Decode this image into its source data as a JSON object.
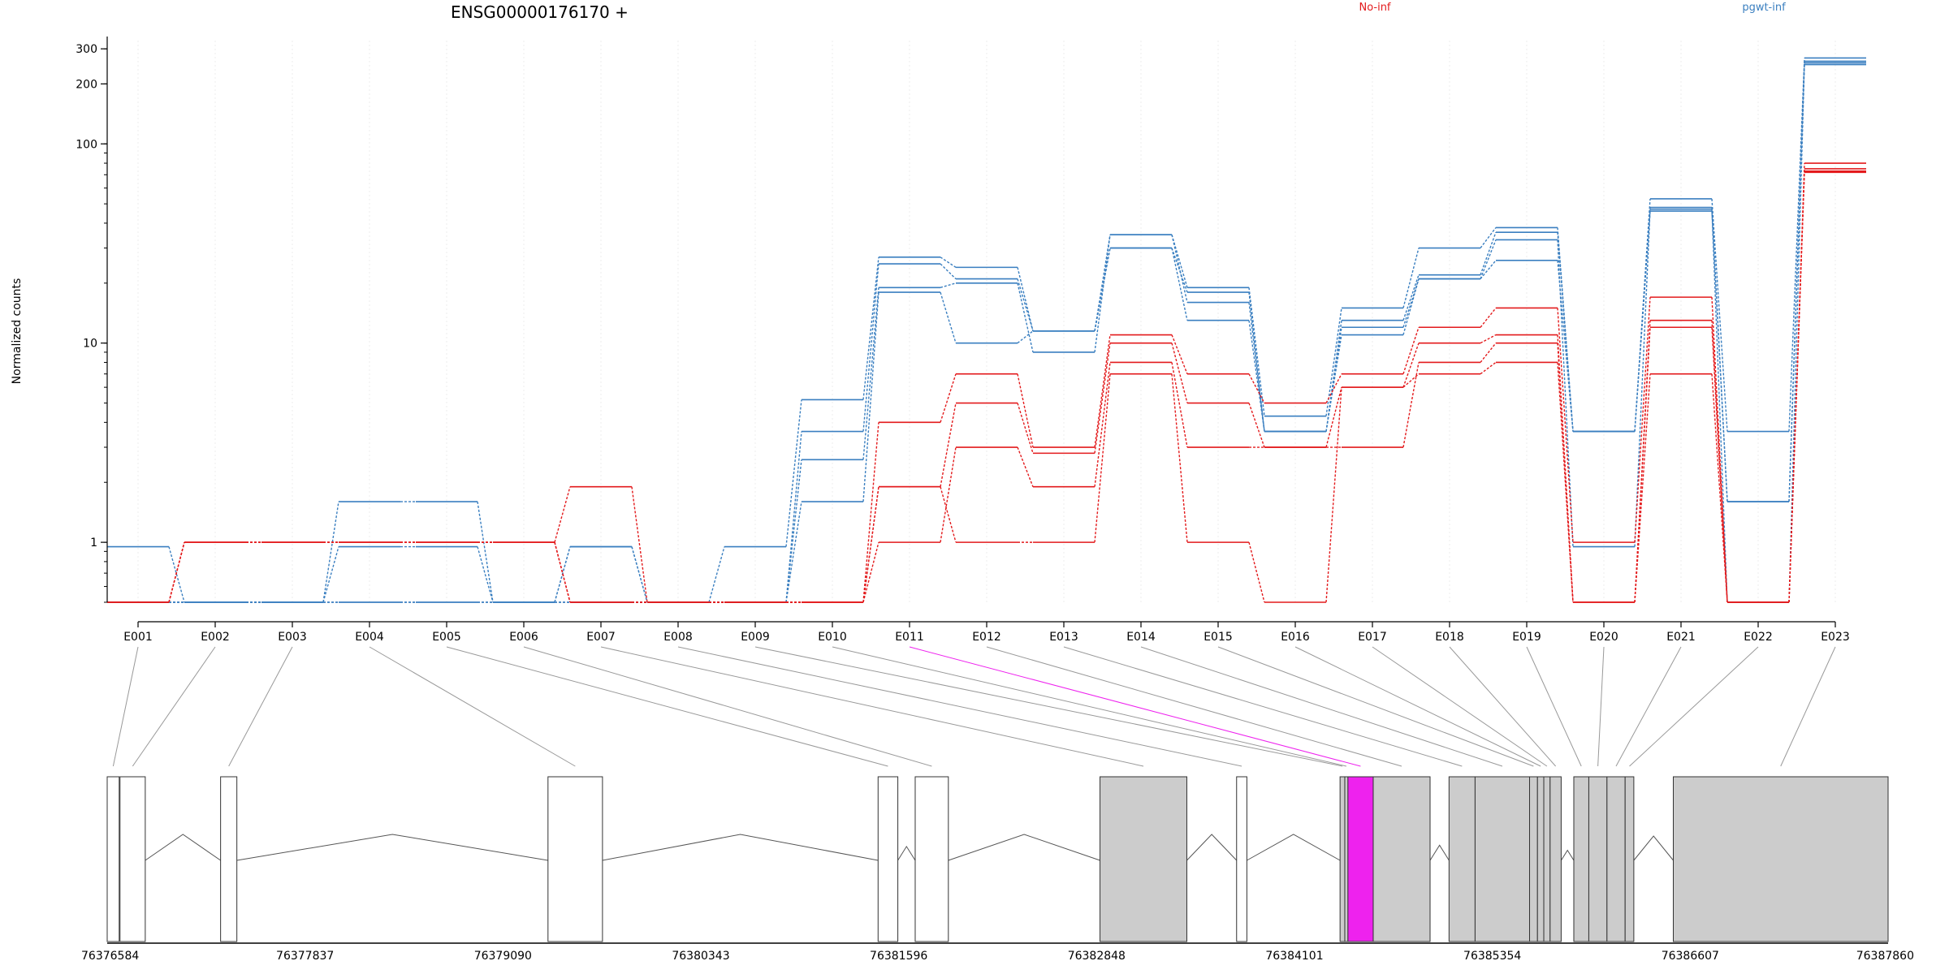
{
  "chart_data": {
    "type": "line",
    "title": "ENSG00000176170 +",
    "ylabel": "Normalized counts",
    "yscale": "log",
    "ylim": [
      0.5,
      330
    ],
    "yticks": [
      1,
      10,
      100,
      200,
      300
    ],
    "ytick_labels": [
      "1",
      "10",
      "100",
      "200",
      "300"
    ],
    "legend": [
      {
        "name": "No-inf",
        "color": "#e31a1c",
        "placement": "top"
      },
      {
        "name": "pgwt-inf",
        "color": "#3a7fc0",
        "placement": "top-right"
      }
    ],
    "categories": [
      "E001",
      "E002",
      "E003",
      "E004",
      "E005",
      "E006",
      "E007",
      "E008",
      "E009",
      "E010",
      "E011",
      "E012",
      "E013",
      "E014",
      "E015",
      "E016",
      "E017",
      "E018",
      "E019",
      "E020",
      "E021",
      "E022",
      "E023"
    ],
    "series": [
      {
        "group": "pgwt-inf",
        "color": "#3a7fc0",
        "values": [
          0.95,
          0.5,
          0.5,
          1.6,
          1.6,
          0.5,
          0.95,
          0.5,
          0.95,
          5.2,
          27,
          24,
          11.5,
          35,
          19,
          4.3,
          15,
          30,
          38,
          3.6,
          53,
          3.6,
          270
        ]
      },
      {
        "group": "pgwt-inf",
        "color": "#3a7fc0",
        "values": [
          0.5,
          0.5,
          0.5,
          0.95,
          0.95,
          0.5,
          0.5,
          0.5,
          0.5,
          3.6,
          25,
          21,
          11.5,
          30,
          18,
          3.6,
          13,
          22,
          36,
          3.6,
          48,
          1.6,
          260
        ]
      },
      {
        "group": "pgwt-inf",
        "color": "#3a7fc0",
        "values": [
          0.5,
          0.5,
          0.5,
          0.5,
          0.5,
          0.5,
          0.95,
          0.5,
          0.5,
          2.6,
          19,
          20,
          9,
          35,
          16,
          3.6,
          12,
          21,
          33,
          0.95,
          47,
          0.5,
          250
        ]
      },
      {
        "group": "pgwt-inf",
        "color": "#3a7fc0",
        "values": [
          0.5,
          0.5,
          0.5,
          0.5,
          0.5,
          0.5,
          0.5,
          0.5,
          0.5,
          1.6,
          18,
          10,
          11.5,
          30,
          13,
          3.6,
          11,
          21,
          26,
          3.6,
          46,
          1.6,
          255
        ]
      },
      {
        "group": "No-inf",
        "color": "#e31a1c",
        "values": [
          0.5,
          1.0,
          1.0,
          1.0,
          1.0,
          1.0,
          1.9,
          0.5,
          0.5,
          0.5,
          4.0,
          7.0,
          3.0,
          11,
          7,
          5,
          7,
          12,
          15,
          1.0,
          17,
          0.5,
          80
        ]
      },
      {
        "group": "No-inf",
        "color": "#e31a1c",
        "values": [
          0.5,
          1.0,
          1.0,
          1.0,
          1.0,
          1.0,
          0.5,
          0.5,
          0.5,
          0.5,
          1.9,
          5.0,
          2.8,
          10,
          5,
          3,
          6,
          10,
          11,
          0.5,
          13,
          0.5,
          75
        ]
      },
      {
        "group": "No-inf",
        "color": "#e31a1c",
        "values": [
          0.5,
          1.0,
          1.0,
          1.0,
          1.0,
          1.0,
          0.5,
          0.5,
          0.5,
          0.5,
          1.0,
          3.0,
          1.9,
          8,
          3,
          3,
          3,
          8,
          10,
          0.5,
          12,
          0.5,
          73
        ]
      },
      {
        "group": "No-inf",
        "color": "#e31a1c",
        "values": [
          0.5,
          1.0,
          1.0,
          1.0,
          1.0,
          1.0,
          0.5,
          0.5,
          0.5,
          0.5,
          1.9,
          1.0,
          1.0,
          7,
          1.0,
          0.5,
          6,
          7,
          8,
          0.5,
          7,
          0.5,
          72
        ]
      }
    ],
    "gene_model": {
      "coordinate_labels": [
        "76376584",
        "76377837",
        "76379090",
        "76380343",
        "76381596",
        "76382848",
        "76384101",
        "76385354",
        "76386607",
        "76387860"
      ],
      "highlighted_exon": "E011",
      "highlight_color": "#ee22ee",
      "exon_fill": "#cccccc",
      "exons": [
        {
          "id": "E001",
          "start": 76376584,
          "end": 76376660,
          "coding": false
        },
        {
          "id": "E002",
          "start": 76376665,
          "end": 76376825,
          "coding": false
        },
        {
          "id": "E003",
          "start": 76377302,
          "end": 76377405,
          "coding": false
        },
        {
          "id": "E004",
          "start": 76379375,
          "end": 76379720,
          "coding": false
        },
        {
          "id": "E005",
          "start": 76381465,
          "end": 76381590,
          "coding": false
        },
        {
          "id": "E006",
          "start": 76381700,
          "end": 76381910,
          "coding": false
        },
        {
          "id": "E007",
          "start": 76382870,
          "end": 76383420,
          "coding": true
        },
        {
          "id": "E008",
          "start": 76383735,
          "end": 76383800,
          "coding": false
        },
        {
          "id": "E009",
          "start": 76384390,
          "end": 76384420,
          "coding": true
        },
        {
          "id": "E010",
          "start": 76384420,
          "end": 76384440,
          "coding": true
        },
        {
          "id": "E011",
          "start": 76384440,
          "end": 76384600,
          "coding": true
        },
        {
          "id": "E012",
          "start": 76384600,
          "end": 76384960,
          "coding": true
        },
        {
          "id": "E013",
          "start": 76385080,
          "end": 76385245,
          "coding": true
        },
        {
          "id": "E014",
          "start": 76385245,
          "end": 76385590,
          "coding": true
        },
        {
          "id": "E015",
          "start": 76385590,
          "end": 76385640,
          "coding": true
        },
        {
          "id": "E016",
          "start": 76385640,
          "end": 76385680,
          "coding": true
        },
        {
          "id": "E017",
          "start": 76385680,
          "end": 76385720,
          "coding": true
        },
        {
          "id": "E018",
          "start": 76385720,
          "end": 76385790,
          "coding": true
        },
        {
          "id": "E019",
          "start": 76385870,
          "end": 76385965,
          "coding": true
        },
        {
          "id": "E020",
          "start": 76385965,
          "end": 76386080,
          "coding": true
        },
        {
          "id": "E021",
          "start": 76386080,
          "end": 76386195,
          "coding": true
        },
        {
          "id": "E022",
          "start": 76386195,
          "end": 76386250,
          "coding": true
        },
        {
          "id": "E023",
          "start": 76386500,
          "end": 76387860,
          "coding": true
        }
      ]
    }
  }
}
